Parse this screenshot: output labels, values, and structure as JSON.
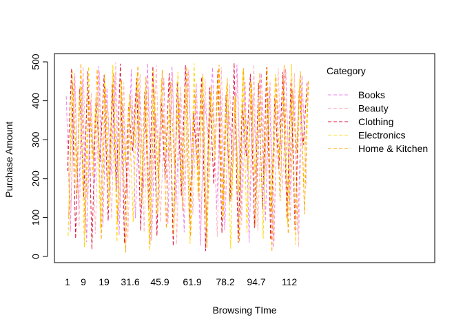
{
  "chart_data": {
    "type": "line",
    "title": "",
    "xlabel": "Browsing TIme",
    "ylabel": "Purchase Amount",
    "x_tick_labels": [
      "1",
      "9",
      "19",
      "31.6",
      "45.9",
      "61.9",
      "78.2",
      "94.7",
      "112"
    ],
    "y_ticks": [
      0,
      100,
      200,
      300,
      400,
      500
    ],
    "ylim": [
      0,
      500
    ],
    "line_style": "dashed",
    "legend": {
      "title": "Category",
      "placement": "top-right",
      "entries": [
        {
          "name": "Books",
          "color": "#ee82ee"
        },
        {
          "name": "Beauty",
          "color": "#ffb6c1"
        },
        {
          "name": "Clothing",
          "color": "#dc143c"
        },
        {
          "name": "Electronics",
          "color": "#ffd700"
        },
        {
          "name": "Home & Kitchen",
          "color": "#ffa500"
        }
      ]
    },
    "series": [
      {
        "name": "Books",
        "color": "#ee82ee",
        "values": [
          412,
          64,
          471,
          129,
          455,
          37,
          398,
          187,
          489,
          76,
          433,
          210,
          468,
          55,
          392,
          150,
          481,
          98,
          422,
          175,
          497,
          41,
          366,
          240,
          458,
          83,
          490,
          133,
          411,
          62,
          477,
          198,
          445,
          28,
          402,
          305,
          486,
          119,
          431,
          67,
          372,
          254,
          493,
          105,
          449,
          36,
          418,
          188,
          471,
          90,
          437,
          22,
          398,
          276,
          482,
          140,
          426,
          58,
          465,
          203
        ]
      },
      {
        "name": "Beauty",
        "color": "#ffb6c1",
        "values": [
          300,
          118,
          463,
          76,
          488,
          152,
          421,
          58,
          476,
          211,
          395,
          97,
          499,
          134,
          447,
          45,
          408,
          279,
          468,
          62,
          431,
          176,
          492,
          88,
          359,
          245,
          475,
          31,
          438,
          160,
          481,
          107,
          413,
          72,
          457,
          193,
          399,
          50,
          486,
          128,
          442,
          236,
          467,
          81,
          377,
          149,
          494,
          66,
          428,
          213,
          451,
          39,
          484,
          170,
          405,
          94,
          471,
          24,
          436,
          180
        ]
      },
      {
        "name": "Clothing",
        "color": "#dc143c",
        "values": [
          219,
          484,
          46,
          431,
          153,
          476,
          18,
          402,
          243,
          466,
          92,
          443,
          174,
          495,
          34,
          385,
          270,
          458,
          66,
          423,
          120,
          489,
          53,
          410,
          197,
          471,
          27,
          447,
          156,
          492,
          83,
          368,
          233,
          461,
          14,
          434,
          186,
          478,
          60,
          415,
          141,
          497,
          35,
          392,
          258,
          469,
          73,
          446,
          121,
          486,
          42,
          406,
          224,
          474,
          97,
          455,
          65,
          426,
          286,
          450
        ]
      },
      {
        "name": "Electronics",
        "color": "#ffd700",
        "values": [
          53,
          478,
          152,
          433,
          24,
          488,
          205,
          415,
          71,
          470,
          126,
          492,
          37,
          451,
          236,
          397,
          88,
          465,
          176,
          428,
          15,
          481,
          109,
          455,
          268,
          386,
          56,
          474,
          190,
          437,
          32,
          496,
          145,
          462,
          79,
          420,
          247,
          484,
          103,
          441,
          20,
          409,
          163,
          479,
          61,
          450,
          213,
          393,
          45,
          487,
          117,
          468,
          256,
          424,
          84,
          495,
          30,
          459,
          181,
          438
        ]
      },
      {
        "name": "Home & Kitchen",
        "color": "#ffa500",
        "values": [
          104,
          445,
          212,
          496,
          60,
          409,
          251,
          481,
          43,
          437,
          171,
          473,
          90,
          454,
          10,
          418,
          286,
          490,
          132,
          462,
          29,
          431,
          198,
          479,
          72,
          449,
          235,
          401,
          117,
          488,
          51,
          426,
          164,
          470,
          22,
          440,
          279,
          493,
          95,
          458,
          147,
          414,
          36,
          484,
          222,
          446,
          77,
          472,
          185,
          399,
          12,
          463,
          142,
          491,
          58,
          428,
          265,
          476,
          109,
          454
        ]
      }
    ]
  }
}
